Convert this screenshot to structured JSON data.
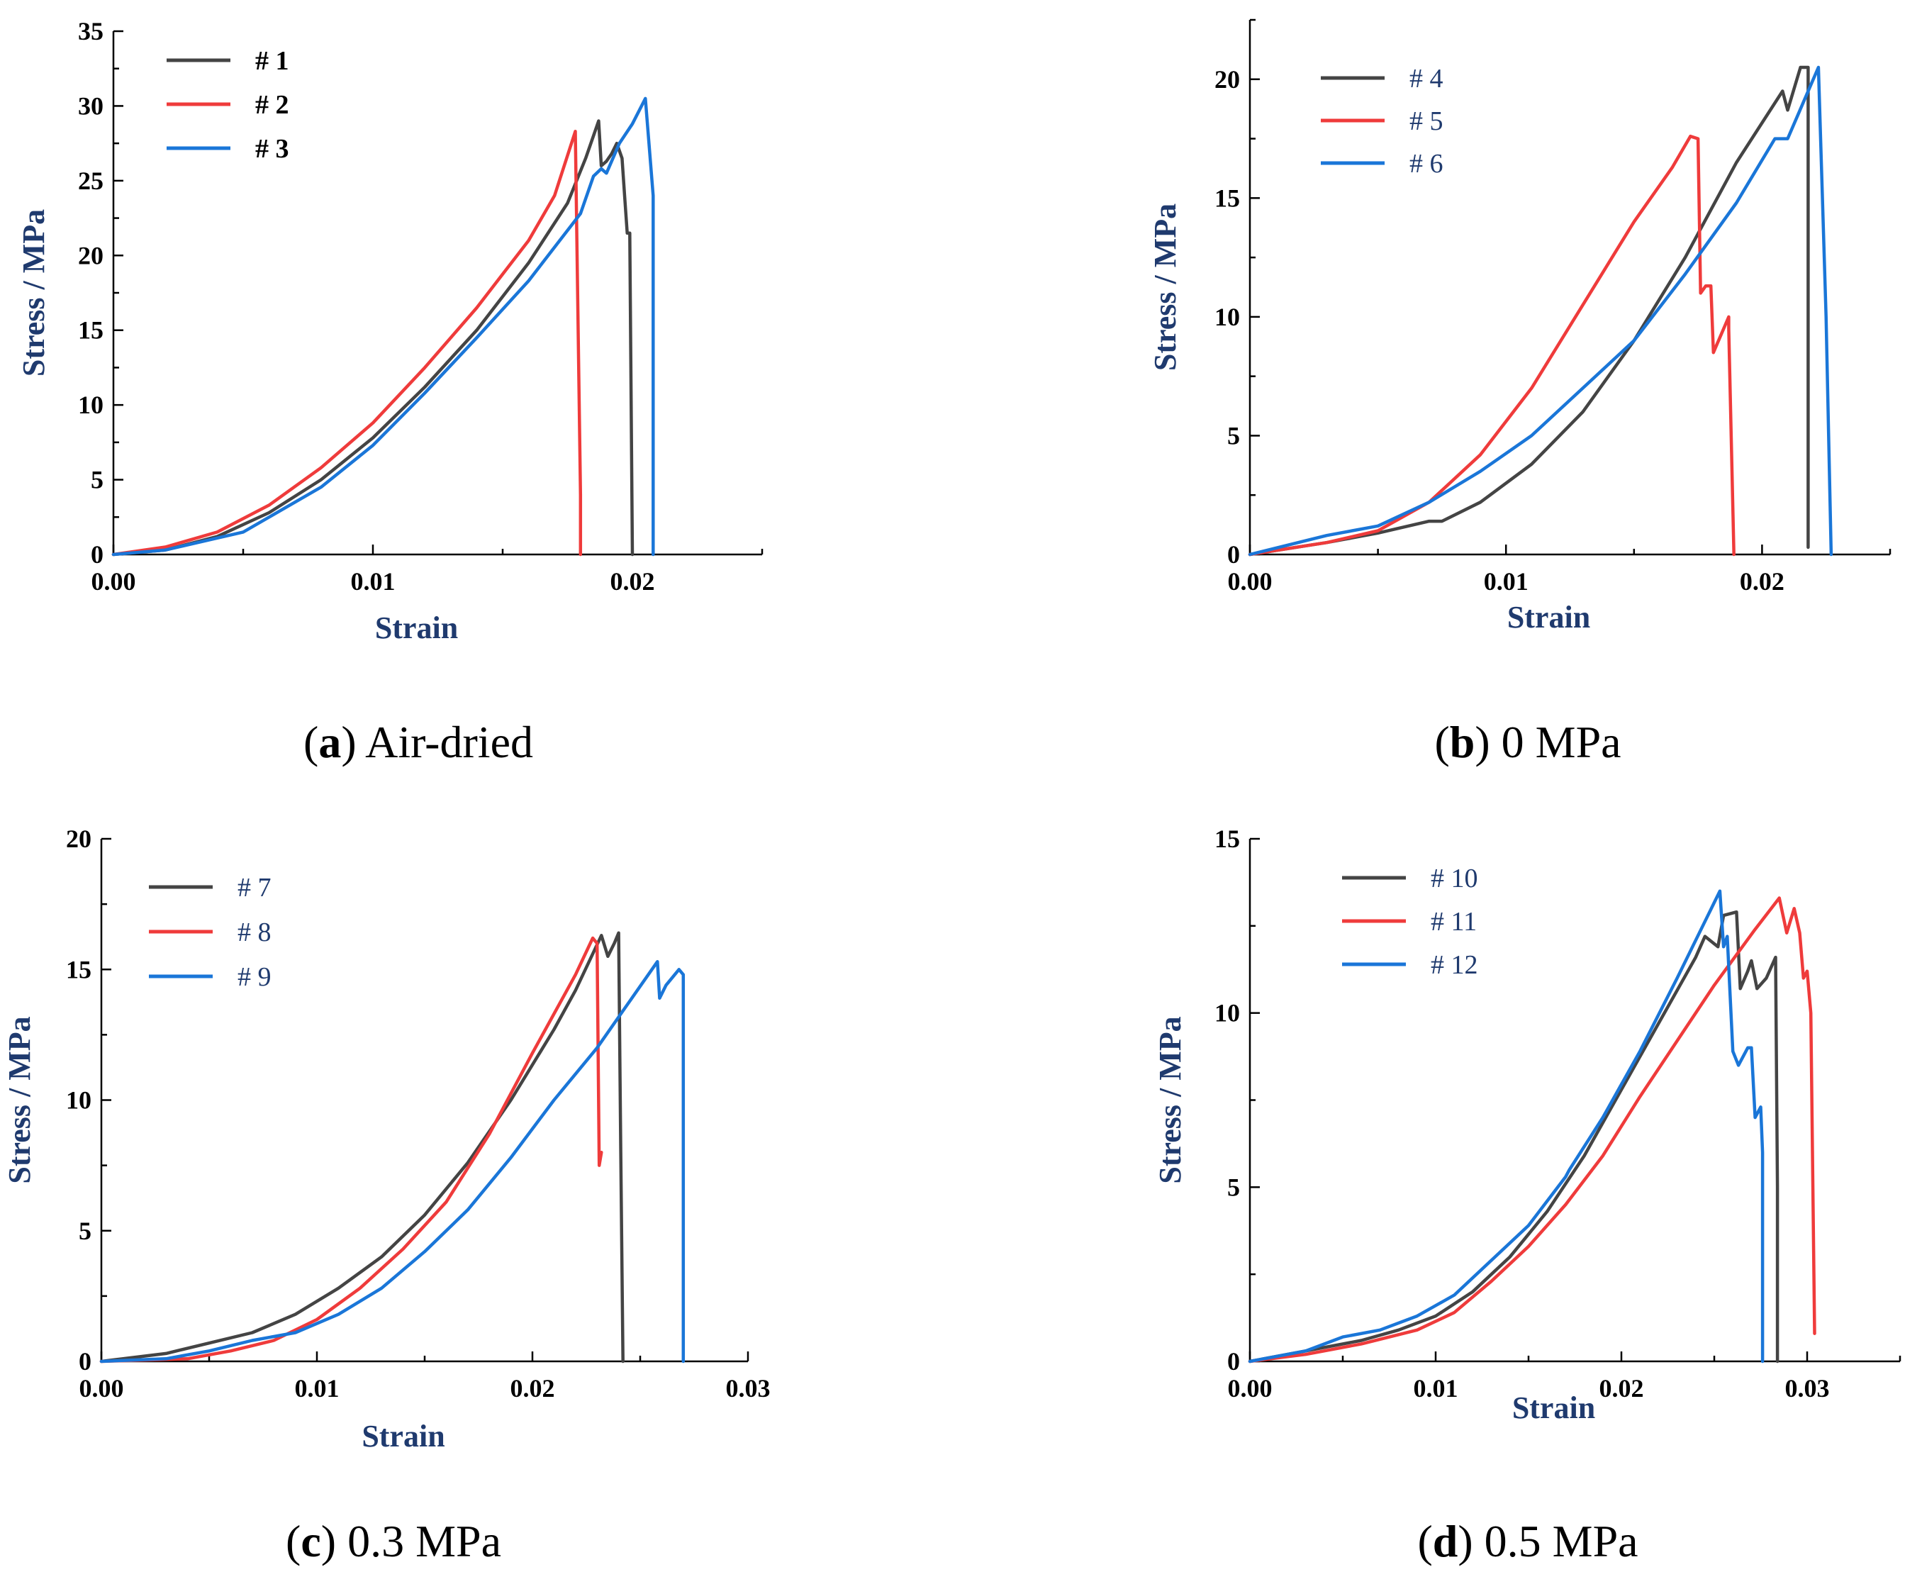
{
  "colors": {
    "black": "#444444",
    "red": "#ef3b3b",
    "blue": "#1a76d8"
  },
  "chart_data": [
    {
      "type": "line",
      "caption_letter": "a",
      "caption_text": "Air-dried",
      "xlabel": "Strain",
      "ylabel": "Stress / MPa",
      "xlim": [
        0,
        0.025
      ],
      "ylim": [
        0,
        35
      ],
      "xticks": [
        0,
        0.01,
        0.02
      ],
      "xtick_labels": [
        "0.00",
        "0.01",
        "0.02"
      ],
      "yticks": [
        0,
        5,
        10,
        15,
        20,
        25,
        30,
        35
      ],
      "ytick_labels": [
        "0",
        "5",
        "10",
        "15",
        "20",
        "25",
        "30",
        "35"
      ],
      "legend_style": "bold",
      "series": [
        {
          "name": "# 1",
          "color": "#444444",
          "x": [
            0,
            0.002,
            0.004,
            0.006,
            0.008,
            0.01,
            0.012,
            0.014,
            0.016,
            0.0175,
            0.0182,
            0.0187,
            0.0188,
            0.019,
            0.0192,
            0.0194,
            0.0196,
            0.0197,
            0.0198,
            0.0199,
            0.02
          ],
          "y": [
            0,
            0.3,
            1.2,
            2.8,
            5.0,
            7.8,
            11.2,
            15.0,
            19.5,
            23.5,
            26.5,
            29.0,
            26.0,
            26.3,
            26.8,
            27.5,
            26.5,
            24.0,
            21.5,
            21.5,
            0
          ]
        },
        {
          "name": "# 2",
          "color": "#ef3b3b",
          "x": [
            0,
            0.002,
            0.004,
            0.006,
            0.008,
            0.01,
            0.012,
            0.014,
            0.016,
            0.017,
            0.0178,
            0.018,
            0.018
          ],
          "y": [
            0,
            0.5,
            1.5,
            3.3,
            5.8,
            8.8,
            12.5,
            16.5,
            21.0,
            24.0,
            28.3,
            4.0,
            0
          ]
        },
        {
          "name": "# 3",
          "color": "#1a76d8",
          "x": [
            0,
            0.002,
            0.005,
            0.008,
            0.01,
            0.012,
            0.014,
            0.016,
            0.018,
            0.0185,
            0.0188,
            0.019,
            0.0195,
            0.02,
            0.0205,
            0.0208,
            0.0208
          ],
          "y": [
            0,
            0.3,
            1.5,
            4.5,
            7.3,
            10.8,
            14.5,
            18.3,
            22.8,
            25.3,
            25.8,
            25.5,
            27.5,
            28.8,
            30.5,
            24.0,
            0
          ]
        }
      ]
    },
    {
      "type": "line",
      "caption_letter": "b",
      "caption_text": "0 MPa",
      "xlabel": "Strain",
      "ylabel": "Stress / MPa",
      "xlim": [
        0,
        0.025
      ],
      "ylim": [
        0,
        22.5
      ],
      "xticks": [
        0,
        0.01,
        0.02
      ],
      "xtick_labels": [
        "0.00",
        "0.01",
        "0.02"
      ],
      "yticks": [
        0,
        5,
        10,
        15,
        20
      ],
      "ytick_labels": [
        "0",
        "5",
        "10",
        "15",
        "20"
      ],
      "legend_style": "navy",
      "series": [
        {
          "name": "# 4",
          "color": "#444444",
          "x": [
            0,
            0.003,
            0.005,
            0.007,
            0.0075,
            0.009,
            0.011,
            0.013,
            0.015,
            0.017,
            0.019,
            0.0208,
            0.021,
            0.0215,
            0.0218,
            0.0218
          ],
          "y": [
            0,
            0.5,
            0.9,
            1.4,
            1.4,
            2.2,
            3.8,
            6.0,
            9.0,
            12.5,
            16.5,
            19.5,
            18.7,
            20.5,
            20.5,
            0.3
          ]
        },
        {
          "name": "# 5",
          "color": "#ef3b3b",
          "x": [
            0,
            0.003,
            0.005,
            0.007,
            0.009,
            0.011,
            0.013,
            0.015,
            0.0165,
            0.0172,
            0.0175,
            0.0176,
            0.0178,
            0.018,
            0.0181,
            0.0187,
            0.0187,
            0.0189
          ],
          "y": [
            0,
            0.5,
            1.0,
            2.2,
            4.2,
            7.0,
            10.5,
            14.0,
            16.3,
            17.6,
            17.5,
            11.0,
            11.3,
            11.3,
            8.5,
            10.0,
            9.5,
            0
          ]
        },
        {
          "name": "# 6",
          "color": "#1a76d8",
          "x": [
            0,
            0.003,
            0.005,
            0.007,
            0.009,
            0.011,
            0.013,
            0.015,
            0.017,
            0.019,
            0.0205,
            0.021,
            0.0222,
            0.0225,
            0.0227
          ],
          "y": [
            0,
            0.8,
            1.2,
            2.2,
            3.5,
            5.0,
            7.0,
            9.0,
            11.8,
            14.8,
            17.5,
            17.5,
            20.5,
            10.0,
            0
          ]
        }
      ]
    },
    {
      "type": "line",
      "caption_letter": "c",
      "caption_text": "0.3 MPa",
      "xlabel": "Strain",
      "ylabel": "Stress / MPa",
      "xlim": [
        0,
        0.03
      ],
      "ylim": [
        0,
        20
      ],
      "xticks": [
        0,
        0.01,
        0.02,
        0.03
      ],
      "xtick_labels": [
        "0.00",
        "0.01",
        "0.02",
        "0.03"
      ],
      "yticks": [
        0,
        5,
        10,
        15,
        20
      ],
      "ytick_labels": [
        "0",
        "5",
        "10",
        "15",
        "20"
      ],
      "legend_style": "navy",
      "series": [
        {
          "name": "# 7",
          "color": "#444444",
          "x": [
            0,
            0.003,
            0.005,
            0.007,
            0.009,
            0.011,
            0.013,
            0.015,
            0.017,
            0.019,
            0.021,
            0.022,
            0.0232,
            0.0235,
            0.0238,
            0.024,
            0.0241,
            0.0242
          ],
          "y": [
            0,
            0.3,
            0.7,
            1.1,
            1.8,
            2.8,
            4.0,
            5.6,
            7.6,
            10.0,
            12.7,
            14.2,
            16.3,
            15.5,
            16.0,
            16.4,
            8.0,
            0
          ]
        },
        {
          "name": "# 8",
          "color": "#ef3b3b",
          "x": [
            0,
            0.004,
            0.006,
            0.008,
            0.01,
            0.012,
            0.014,
            0.016,
            0.018,
            0.02,
            0.022,
            0.0228,
            0.023,
            0.0231,
            0.0232
          ],
          "y": [
            0,
            0.1,
            0.4,
            0.8,
            1.6,
            2.8,
            4.3,
            6.1,
            8.7,
            11.8,
            14.8,
            16.2,
            16.0,
            7.5,
            8.0
          ]
        },
        {
          "name": "# 9",
          "color": "#1a76d8",
          "x": [
            0,
            0.003,
            0.005,
            0.007,
            0.009,
            0.011,
            0.013,
            0.015,
            0.017,
            0.019,
            0.021,
            0.023,
            0.0258,
            0.0259,
            0.0262,
            0.0268,
            0.027,
            0.027
          ],
          "y": [
            0,
            0.1,
            0.4,
            0.8,
            1.1,
            1.8,
            2.8,
            4.2,
            5.8,
            7.8,
            10.0,
            12.0,
            15.3,
            13.9,
            14.4,
            15.0,
            14.8,
            0
          ]
        }
      ]
    },
    {
      "type": "line",
      "caption_letter": "d",
      "caption_text": "0.5 MPa",
      "xlabel": "Strain",
      "ylabel": "Stress / MPa",
      "xlim": [
        0,
        0.035
      ],
      "ylim": [
        0,
        15
      ],
      "xticks": [
        0,
        0.01,
        0.02,
        0.03
      ],
      "xtick_labels": [
        "0.00",
        "0.01",
        "0.02",
        "0.03"
      ],
      "yticks": [
        0,
        5,
        10,
        15
      ],
      "ytick_labels": [
        "0",
        "5",
        "10",
        "15"
      ],
      "legend_style": "navy",
      "series": [
        {
          "name": "# 10",
          "color": "#444444",
          "x": [
            0,
            0.003,
            0.006,
            0.008,
            0.01,
            0.012,
            0.014,
            0.016,
            0.018,
            0.02,
            0.022,
            0.024,
            0.0245,
            0.0252,
            0.0255,
            0.0262,
            0.0264,
            0.0268,
            0.027,
            0.0273,
            0.0278,
            0.0283,
            0.0284,
            0.0284
          ],
          "y": [
            0,
            0.3,
            0.6,
            0.9,
            1.3,
            2.0,
            3.0,
            4.3,
            5.9,
            7.8,
            9.7,
            11.6,
            12.2,
            11.9,
            12.8,
            12.9,
            10.7,
            11.2,
            11.5,
            10.7,
            11.0,
            11.6,
            5.0,
            0
          ]
        },
        {
          "name": "# 11",
          "color": "#ef3b3b",
          "x": [
            0,
            0.003,
            0.006,
            0.009,
            0.011,
            0.013,
            0.015,
            0.017,
            0.019,
            0.021,
            0.023,
            0.025,
            0.0272,
            0.0285,
            0.0289,
            0.0293,
            0.0296,
            0.0298,
            0.03,
            0.0302,
            0.0304
          ],
          "y": [
            0,
            0.2,
            0.5,
            0.9,
            1.4,
            2.3,
            3.3,
            4.5,
            5.9,
            7.6,
            9.2,
            10.8,
            12.4,
            13.3,
            12.3,
            13.0,
            12.3,
            11.0,
            11.2,
            10.0,
            0.8
          ]
        },
        {
          "name": "# 12",
          "color": "#1a76d8",
          "x": [
            0,
            0.003,
            0.005,
            0.007,
            0.009,
            0.011,
            0.013,
            0.015,
            0.017,
            0.0172,
            0.019,
            0.021,
            0.023,
            0.0253,
            0.0255,
            0.0257,
            0.026,
            0.0263,
            0.0268,
            0.027,
            0.0272,
            0.0275,
            0.0276,
            0.0276
          ],
          "y": [
            0,
            0.3,
            0.7,
            0.9,
            1.3,
            1.9,
            2.9,
            3.9,
            5.3,
            5.5,
            7.0,
            8.9,
            11.0,
            13.5,
            11.9,
            12.2,
            8.9,
            8.5,
            9.0,
            9.0,
            7.0,
            7.3,
            6.0,
            0
          ]
        }
      ]
    }
  ]
}
